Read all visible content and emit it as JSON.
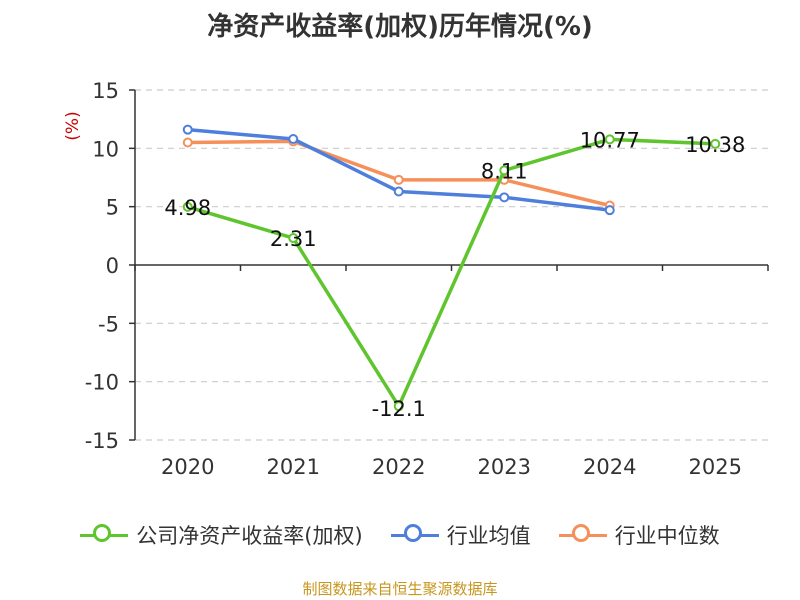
{
  "chart_data": {
    "type": "line",
    "title": "净资产收益率(加权)历年情况(%)",
    "ylabel": "(%)",
    "ylim": [
      -15,
      15
    ],
    "yticks": [
      15,
      10,
      5,
      0,
      -5,
      -10,
      -15
    ],
    "categories": [
      "2020",
      "2021",
      "2022",
      "2023",
      "2024",
      "2025"
    ],
    "series": [
      {
        "name": "公司净资产收益率(加权)",
        "color": "#5fc52e",
        "values": [
          4.98,
          2.31,
          -12.1,
          8.11,
          10.77,
          10.38
        ],
        "labels": [
          "4.98",
          "2.31",
          "-12.1",
          "8.11",
          "10.77",
          "10.38"
        ]
      },
      {
        "name": "行业均值",
        "color": "#4e7fdc",
        "values": [
          11.6,
          10.8,
          6.3,
          5.8,
          4.7,
          null
        ]
      },
      {
        "name": "行业中位数",
        "color": "#f6905a",
        "values": [
          10.5,
          10.6,
          7.3,
          7.3,
          5.1,
          null
        ]
      }
    ]
  },
  "footer": {
    "source": "制图数据来自恒生聚源数据库",
    "source_color": "#c8961e"
  },
  "colors": {
    "axis": "#333333",
    "grid": "#cccccc",
    "ylabel": "#cc0000"
  }
}
